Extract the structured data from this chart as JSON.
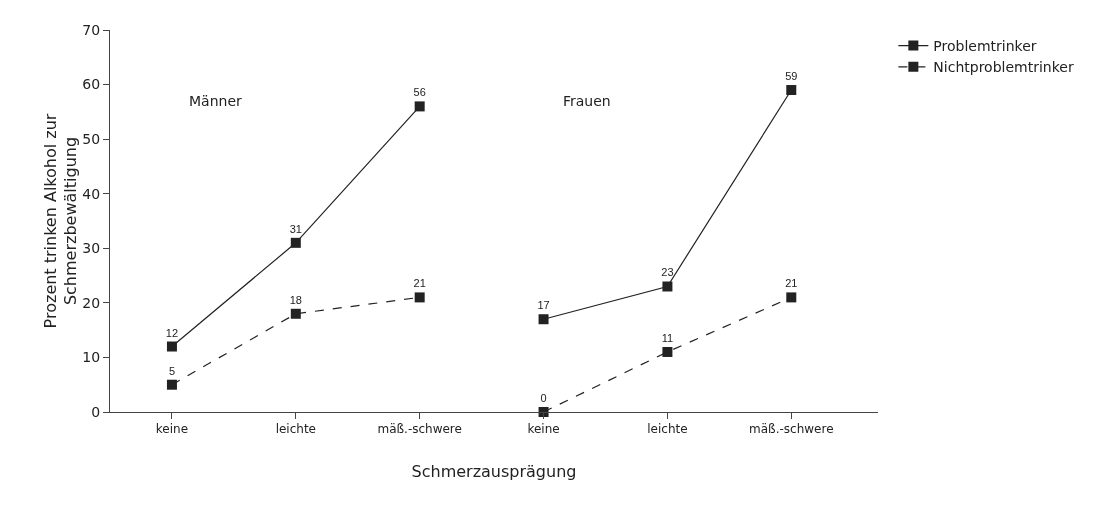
{
  "chart_data": {
    "type": "line",
    "xlabel": "Schmerzausprägung",
    "ylabel": "Prozent trinken Alkohol zur\nSchmerzbewältigung",
    "categories": [
      "keine",
      "leichte",
      "mäß.-schwere",
      "keine",
      "leichte",
      "mäß.-schwere"
    ],
    "series": [
      {
        "name": "Problemtrinker",
        "color": "#222222",
        "line_style": "solid",
        "values": [
          12,
          31,
          56,
          null,
          null,
          null
        ]
      },
      {
        "name": "Nichtproblemtrinker",
        "color": "#222222",
        "line_style": "dashed",
        "values": [
          5,
          18,
          21,
          null,
          null,
          null
        ]
      },
      {
        "color": "#222222",
        "line_style": "solid",
        "values": [
          null,
          null,
          null,
          17,
          23,
          59
        ]
      },
      {
        "color": "#222222",
        "line_style": "dashed",
        "values": [
          null,
          null,
          null,
          0,
          11,
          21
        ]
      }
    ],
    "data_labels": true,
    "annotations": [
      "Männer",
      "Frauen"
    ],
    "ylim": [
      0,
      70
    ],
    "yticks": [
      0,
      10,
      20,
      30,
      40,
      50,
      60,
      70
    ],
    "grid": false,
    "legend": "top right",
    "marker": "square"
  }
}
